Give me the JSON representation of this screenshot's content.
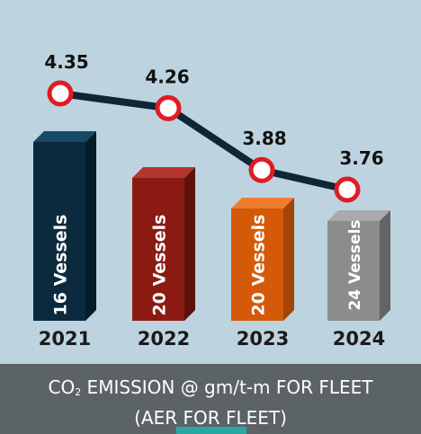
{
  "chart_data": {
    "type": "bar",
    "categories": [
      "2021",
      "2022",
      "2023",
      "2024"
    ],
    "bar_labels": [
      "16  Vessels",
      "20  Vessels",
      "20  Vessels",
      "24 Vessels"
    ],
    "line_series": {
      "values": [
        4.35,
        4.26,
        3.88,
        3.76
      ]
    },
    "colors": {
      "bar_front": [
        "#0b2a3d",
        "#8b1a12",
        "#d45a0a",
        "#8a8c8e"
      ],
      "bar_side": [
        "#071c29",
        "#5c110b",
        "#a24506",
        "#626466"
      ],
      "bar_top": [
        "#174a66",
        "#b5362a",
        "#f07d2e",
        "#a8aaac"
      ],
      "line": "#0e2636",
      "marker_ring": "#e01b24",
      "background": "#bdd4e0"
    }
  },
  "footer": {
    "title_prefix": "CO",
    "title_sub": "2",
    "title_rest": " EMISSION @ gm/t-m FOR FLEET",
    "subtitle": "(AER FOR FLEET)"
  }
}
